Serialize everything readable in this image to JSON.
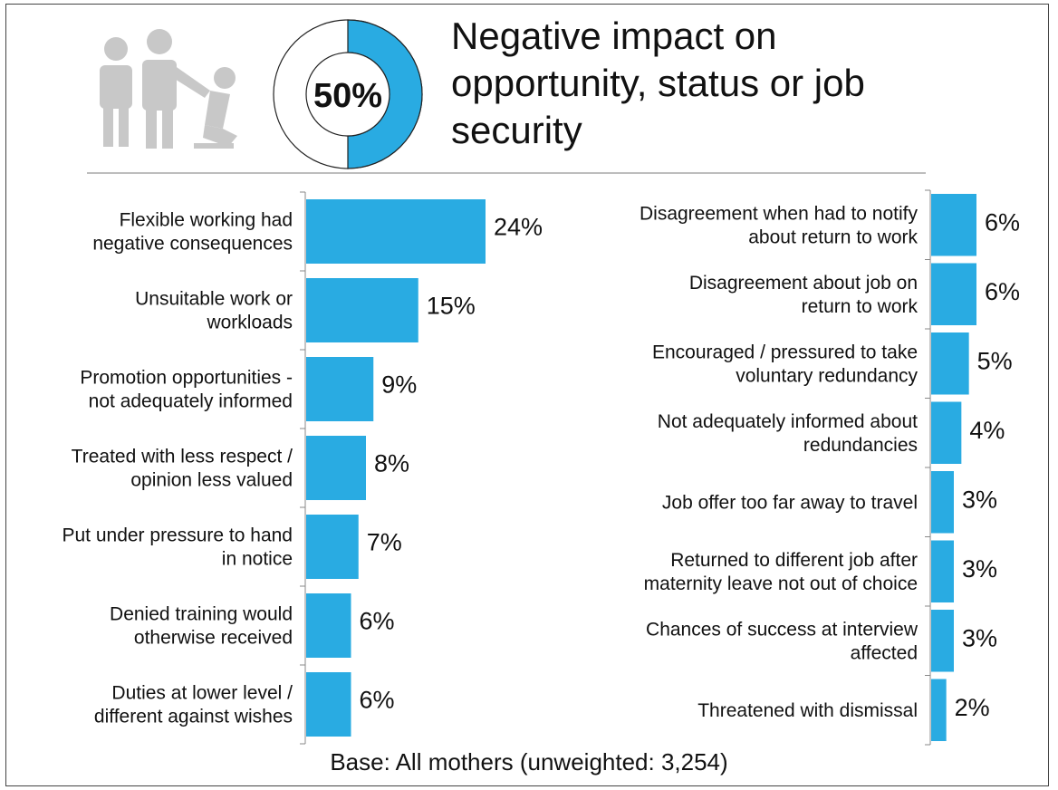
{
  "header": {
    "title": "Negative impact on opportunity, status or job security",
    "overall_percent": 50,
    "overall_label": "50%",
    "illustration": "people-figures-icon"
  },
  "footer": {
    "base_note": "Base: All mothers (unweighted: 3,254)"
  },
  "colors": {
    "bar": "#29abe2",
    "donut_fill": "#29abe2",
    "illustration": "#c8c8c8",
    "divider": "#bdbdbd"
  },
  "chart_data": [
    {
      "type": "bar",
      "orientation": "horizontal",
      "value_format": "percent",
      "xlim": [
        0,
        24
      ],
      "categories": [
        [
          "Flexible working had",
          "negative consequences"
        ],
        [
          "Unsuitable work or",
          "workloads"
        ],
        [
          "Promotion opportunities -",
          "not adequately informed"
        ],
        [
          "Treated with less respect /",
          "opinion less valued"
        ],
        [
          "Put under pressure to hand",
          "in notice"
        ],
        [
          "Denied training would",
          "otherwise received"
        ],
        [
          "Duties at lower level /",
          "different against wishes"
        ]
      ],
      "values": [
        24,
        15,
        9,
        8,
        7,
        6,
        6
      ],
      "data_labels": [
        "24%",
        "15%",
        "9%",
        "8%",
        "7%",
        "6%",
        "6%"
      ]
    },
    {
      "type": "bar",
      "orientation": "horizontal",
      "value_format": "percent",
      "xlim": [
        0,
        6
      ],
      "categories": [
        [
          "Disagreement when had to notify",
          "about return to work"
        ],
        [
          "Disagreement about job on",
          "return to work"
        ],
        [
          "Encouraged / pressured to take",
          "voluntary redundancy"
        ],
        [
          "Not adequately informed about",
          "redundancies"
        ],
        [
          "Job offer too far away to travel"
        ],
        [
          "Returned to different job after",
          "maternity leave not out of choice"
        ],
        [
          "Chances of success at interview",
          "affected"
        ],
        [
          "Threatened with dismissal"
        ]
      ],
      "values": [
        6,
        6,
        5,
        4,
        3,
        3,
        3,
        2
      ],
      "data_labels": [
        "6%",
        "6%",
        "5%",
        "4%",
        "3%",
        "3%",
        "3%",
        "2%"
      ]
    }
  ]
}
